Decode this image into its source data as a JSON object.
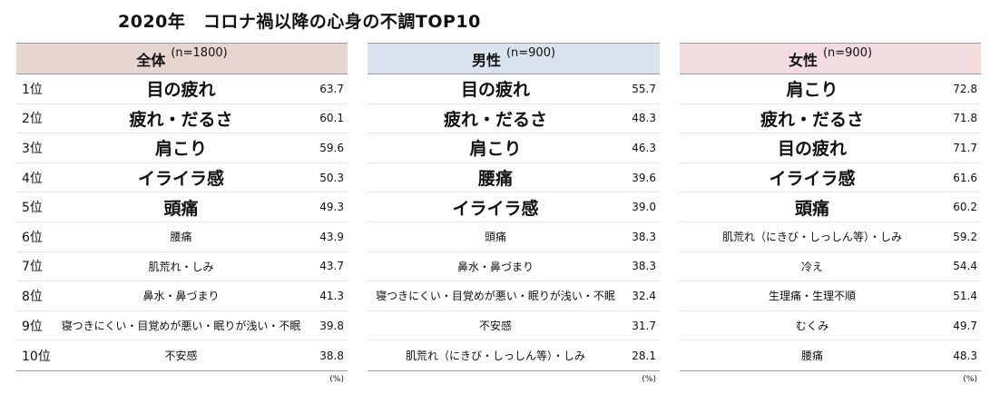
{
  "title": "2020年　コロナ禍以降の心身の不調TOP10",
  "unit": "(%)",
  "tables": [
    {
      "label": "全体",
      "n": "(n=1800)",
      "rows": [
        {
          "rank": "1位",
          "item": "目の疲れ",
          "value": "63.7"
        },
        {
          "rank": "2位",
          "item": "疲れ・だるさ",
          "value": "60.1"
        },
        {
          "rank": "3位",
          "item": "肩こり",
          "value": "59.6"
        },
        {
          "rank": "4位",
          "item": "イライラ感",
          "value": "50.3"
        },
        {
          "rank": "5位",
          "item": "頭痛",
          "value": "49.3"
        },
        {
          "rank": "6位",
          "item": "腰痛",
          "value": "43.9"
        },
        {
          "rank": "7位",
          "item": "肌荒れ・しみ",
          "value": "43.7"
        },
        {
          "rank": "8位",
          "item": "鼻水・鼻づまり",
          "value": "41.3"
        },
        {
          "rank": "9位",
          "item": "寝つきにくい・目覚めが悪い・眠りが浅い・不眠",
          "value": "39.8"
        },
        {
          "rank": "10位",
          "item": "不安感",
          "value": "38.8"
        }
      ]
    },
    {
      "label": "男性",
      "n": "(n=900)",
      "rows": [
        {
          "item": "目の疲れ",
          "value": "55.7"
        },
        {
          "item": "疲れ・だるさ",
          "value": "48.3"
        },
        {
          "item": "肩こり",
          "value": "46.3"
        },
        {
          "item": "腰痛",
          "value": "39.6"
        },
        {
          "item": "イライラ感",
          "value": "39.0"
        },
        {
          "item": "頭痛",
          "value": "38.3"
        },
        {
          "item": "鼻水・鼻づまり",
          "value": "38.3"
        },
        {
          "item": "寝つきにくい・目覚めが悪い・眠りが浅い・不眠",
          "value": "32.4"
        },
        {
          "item": "不安感",
          "value": "31.7"
        },
        {
          "item": "肌荒れ（にきび・しっしん等）・しみ",
          "value": "28.1"
        }
      ]
    },
    {
      "label": "女性",
      "n": "(n=900)",
      "rows": [
        {
          "item": "肩こり",
          "value": "72.8"
        },
        {
          "item": "疲れ・だるさ",
          "value": "71.8"
        },
        {
          "item": "目の疲れ",
          "value": "71.7"
        },
        {
          "item": "イライラ感",
          "value": "61.6"
        },
        {
          "item": "頭痛",
          "value": "60.2"
        },
        {
          "item": "肌荒れ（にきび・しっしん等）・しみ",
          "value": "59.2"
        },
        {
          "item": "冷え",
          "value": "54.4"
        },
        {
          "item": "生理痛・生理不順",
          "value": "51.4"
        },
        {
          "item": "むくみ",
          "value": "49.7"
        },
        {
          "item": "腰痛",
          "value": "48.3"
        }
      ]
    }
  ]
}
